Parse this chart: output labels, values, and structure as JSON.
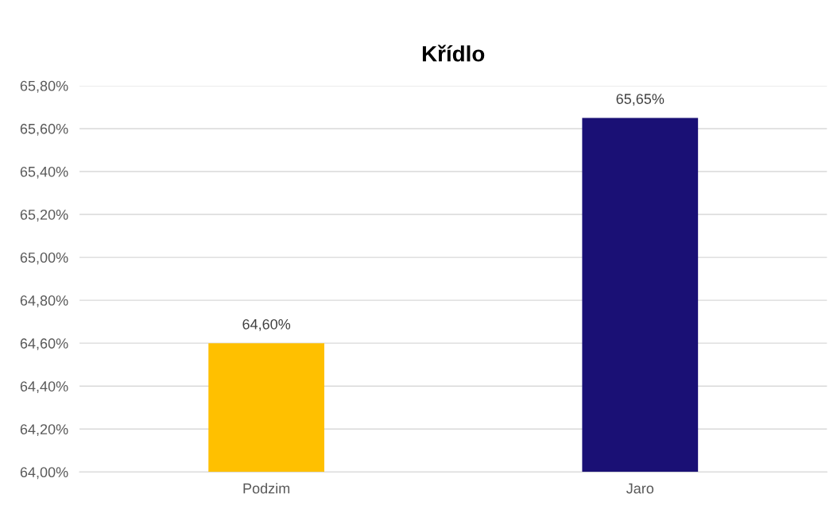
{
  "chart_data": {
    "type": "bar",
    "title": "Křídlo",
    "categories": [
      "Podzim",
      "Jaro"
    ],
    "values": [
      64.6,
      65.65
    ],
    "colors": [
      "#ffc000",
      "#1a1075"
    ],
    "value_labels": [
      "64,60%",
      "65,65%"
    ],
    "ylim": [
      64.0,
      65.8
    ],
    "yticks": [
      {
        "value": 64.0,
        "label": "64,00%"
      },
      {
        "value": 64.2,
        "label": "64,20%"
      },
      {
        "value": 64.4,
        "label": "64,40%"
      },
      {
        "value": 64.6,
        "label": "64,60%"
      },
      {
        "value": 64.8,
        "label": "64,80%"
      },
      {
        "value": 65.0,
        "label": "65,00%"
      },
      {
        "value": 65.2,
        "label": "65,20%"
      },
      {
        "value": 65.4,
        "label": "65,40%"
      },
      {
        "value": 65.6,
        "label": "65,60%"
      },
      {
        "value": 65.8,
        "label": "65,80%"
      }
    ],
    "grid": "y",
    "legend": false
  }
}
